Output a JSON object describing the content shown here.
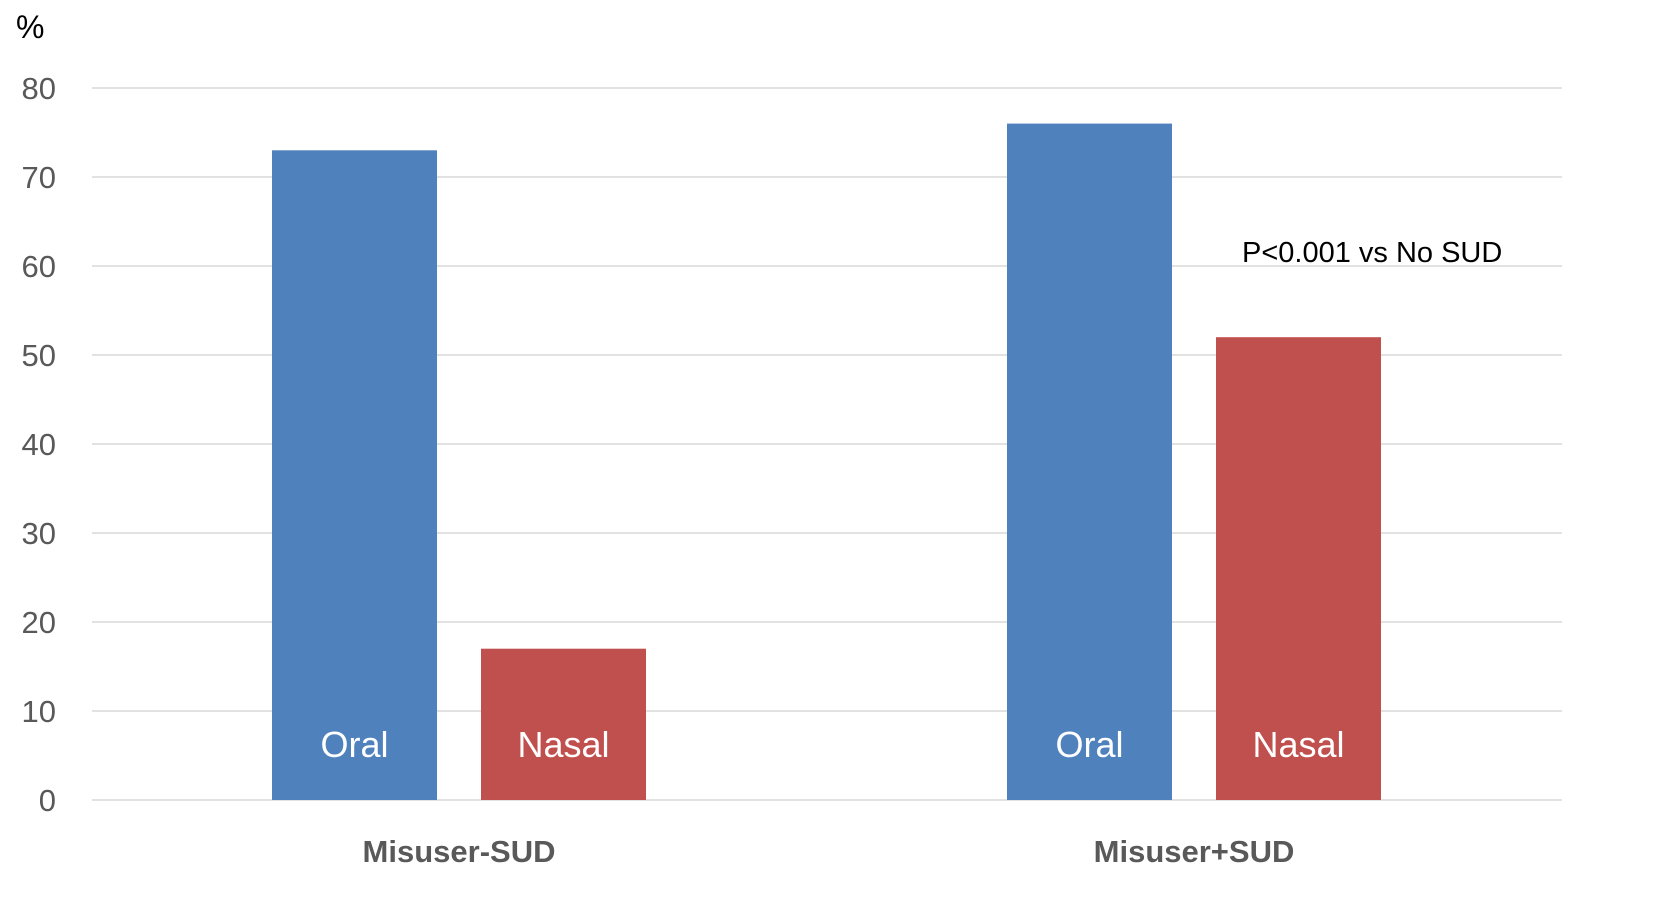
{
  "chart_data": {
    "type": "bar",
    "y_unit_label": "%",
    "categories": [
      "Misuser-SUD",
      "Misuser+SUD"
    ],
    "series": [
      {
        "name": "Oral",
        "color": "#4f81bd",
        "values": [
          73,
          76
        ]
      },
      {
        "name": "Nasal",
        "color": "#c0504d",
        "values": [
          17,
          52
        ]
      }
    ],
    "ylim": [
      0,
      80
    ],
    "y_ticks": [
      0,
      10,
      20,
      30,
      40,
      50,
      60,
      70,
      80
    ],
    "grid": true,
    "legend": "none",
    "annotations": [
      {
        "text": "P<0.001 vs No SUD",
        "category": "Misuser+SUD",
        "series": "Nasal"
      }
    ]
  }
}
